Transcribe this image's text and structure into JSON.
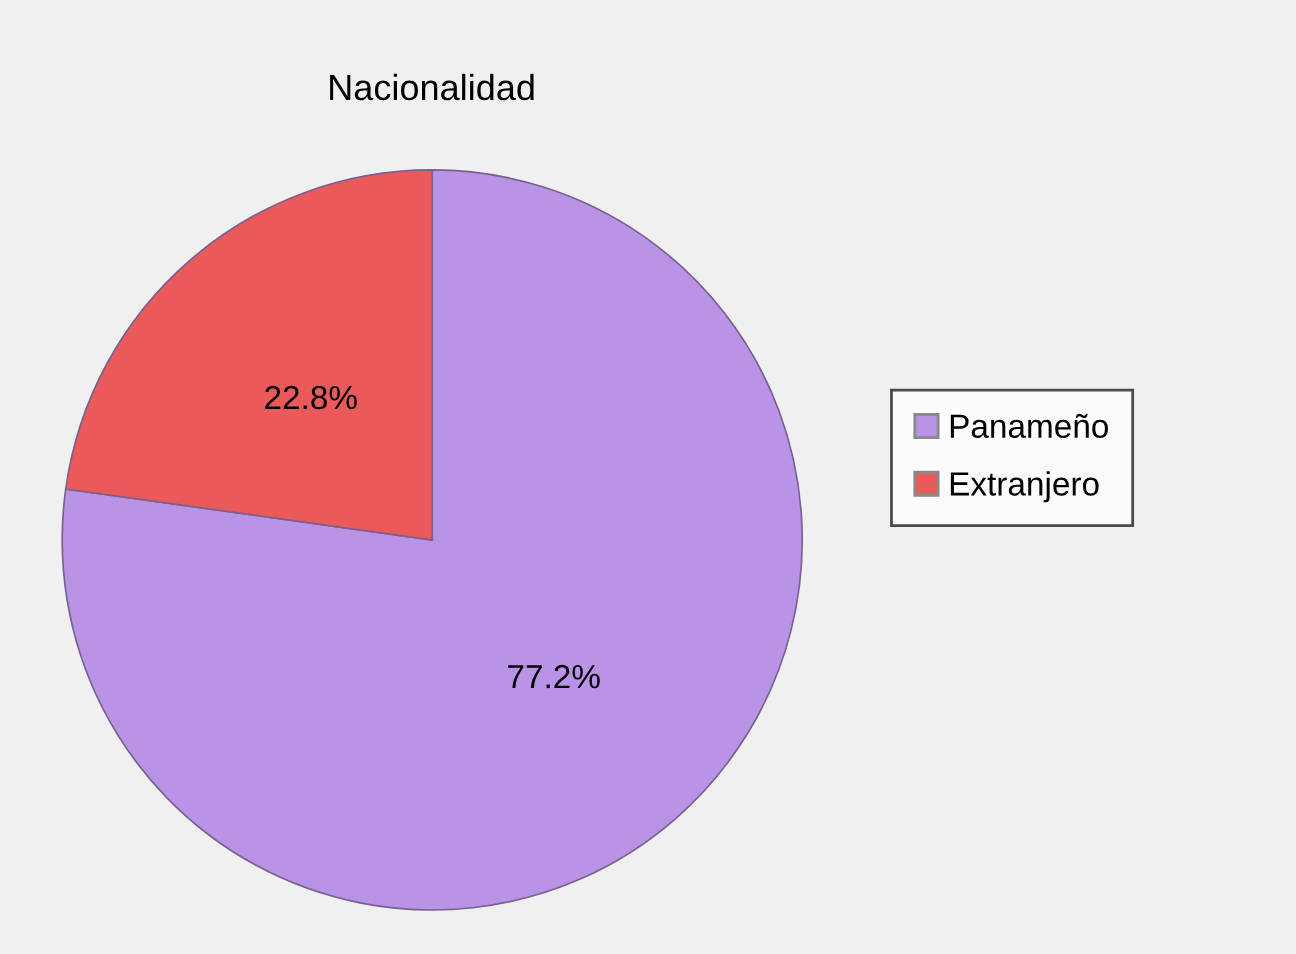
{
  "chart_data": {
    "type": "pie",
    "title": "Nacionalidad",
    "categories": [
      "Panameño",
      "Extranjero"
    ],
    "values": [
      77.2,
      22.8
    ],
    "colors": [
      "#b993e6",
      "#ea5a5a"
    ],
    "value_labels": [
      "77.2%",
      "22.8%"
    ],
    "legend": "right"
  }
}
